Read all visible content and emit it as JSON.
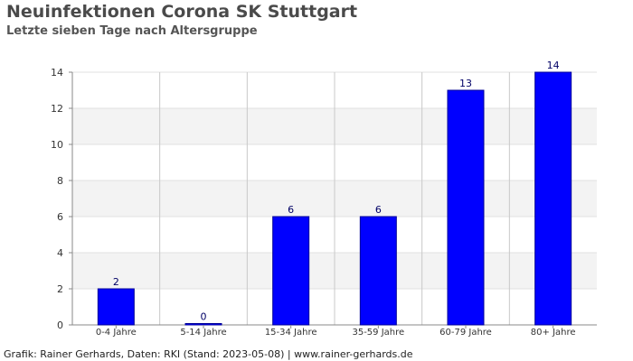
{
  "header": {
    "title": "Neuinfektionen Corona SK Stuttgart",
    "subtitle": "Letzte sieben Tage nach Altersgruppe"
  },
  "footer": {
    "credit": "Grafik: Rainer Gerhards, Daten: RKI (Stand: 2023-05-08) | www.rainer-gerhards.de"
  },
  "chart_data": {
    "type": "bar",
    "title": "Neuinfektionen Corona SK Stuttgart",
    "subtitle": "Letzte sieben Tage nach Altersgruppe",
    "categories": [
      "0-4 Jahre",
      "5-14 Jahre",
      "15-34 Jahre",
      "35-59 Jahre",
      "60-79 Jahre",
      "80+ Jahre"
    ],
    "values": [
      2,
      0,
      6,
      6,
      13,
      14
    ],
    "ylim": [
      0,
      14
    ],
    "yticks": [
      0,
      2,
      4,
      6,
      8,
      10,
      12,
      14
    ],
    "xlabel": "",
    "ylabel": "",
    "grid": true,
    "legend": "none",
    "bar_color": "#0000ff",
    "bar_edge_color": "#000099",
    "band_color": "#f3f3f3"
  }
}
